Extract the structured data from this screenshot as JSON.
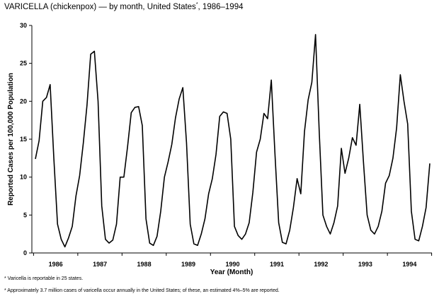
{
  "title": "VARICELLA (chickenpox) — by month, United States",
  "title_marker": "*",
  "title_years": ", 1986–1994",
  "footnotes": [
    "* Varicella is reportable in 25 states.",
    "* Approximately 3.7 million cases of varicella occur annually in the United States; of these, an estimated 4%–5% are reported."
  ],
  "chart_data": {
    "type": "line",
    "xlabel": "Year (Month)",
    "ylabel": "Reported Cases per 100,000 Population",
    "ylim": [
      0,
      30
    ],
    "yticks": [
      0,
      5,
      10,
      15,
      20,
      25,
      30
    ],
    "year_labels": [
      "1986",
      "1987",
      "1988",
      "1989",
      "1990",
      "1991",
      "1992",
      "1993",
      "1994"
    ],
    "grid": false,
    "series": [
      {
        "values": [
          12.4,
          14.8,
          20.0,
          20.5,
          22.2,
          12.5,
          3.8,
          1.8,
          0.8,
          2.0,
          3.5,
          7.5,
          10.2,
          14.5,
          19.5,
          26.2,
          26.6,
          20.0,
          6.2,
          1.8,
          1.3,
          1.7,
          3.8,
          10.0,
          10.0,
          14.0,
          18.5,
          19.2,
          19.3,
          16.8,
          4.5,
          1.3,
          1.0,
          2.2,
          5.5,
          10.0,
          12.0,
          14.3,
          17.8,
          20.3,
          21.8,
          14.5,
          3.8,
          1.2,
          1.0,
          2.5,
          4.5,
          7.8,
          9.8,
          13.0,
          18.0,
          18.6,
          18.4,
          15.0,
          3.5,
          2.3,
          1.8,
          2.5,
          4.0,
          8.0,
          13.3,
          15.0,
          18.4,
          17.7,
          22.8,
          13.0,
          4.0,
          1.4,
          1.2,
          3.0,
          6.0,
          9.8,
          7.8,
          16.0,
          20.2,
          22.5,
          28.8,
          16.0,
          5.0,
          3.5,
          2.5,
          4.0,
          6.2,
          13.8,
          10.5,
          12.5,
          15.2,
          14.2,
          19.6,
          12.0,
          5.0,
          3.0,
          2.5,
          3.5,
          5.5,
          9.2,
          10.2,
          12.5,
          16.5,
          23.5,
          20.0,
          17.0,
          5.5,
          1.8,
          1.6,
          3.5,
          6.0,
          11.8
        ]
      }
    ]
  }
}
